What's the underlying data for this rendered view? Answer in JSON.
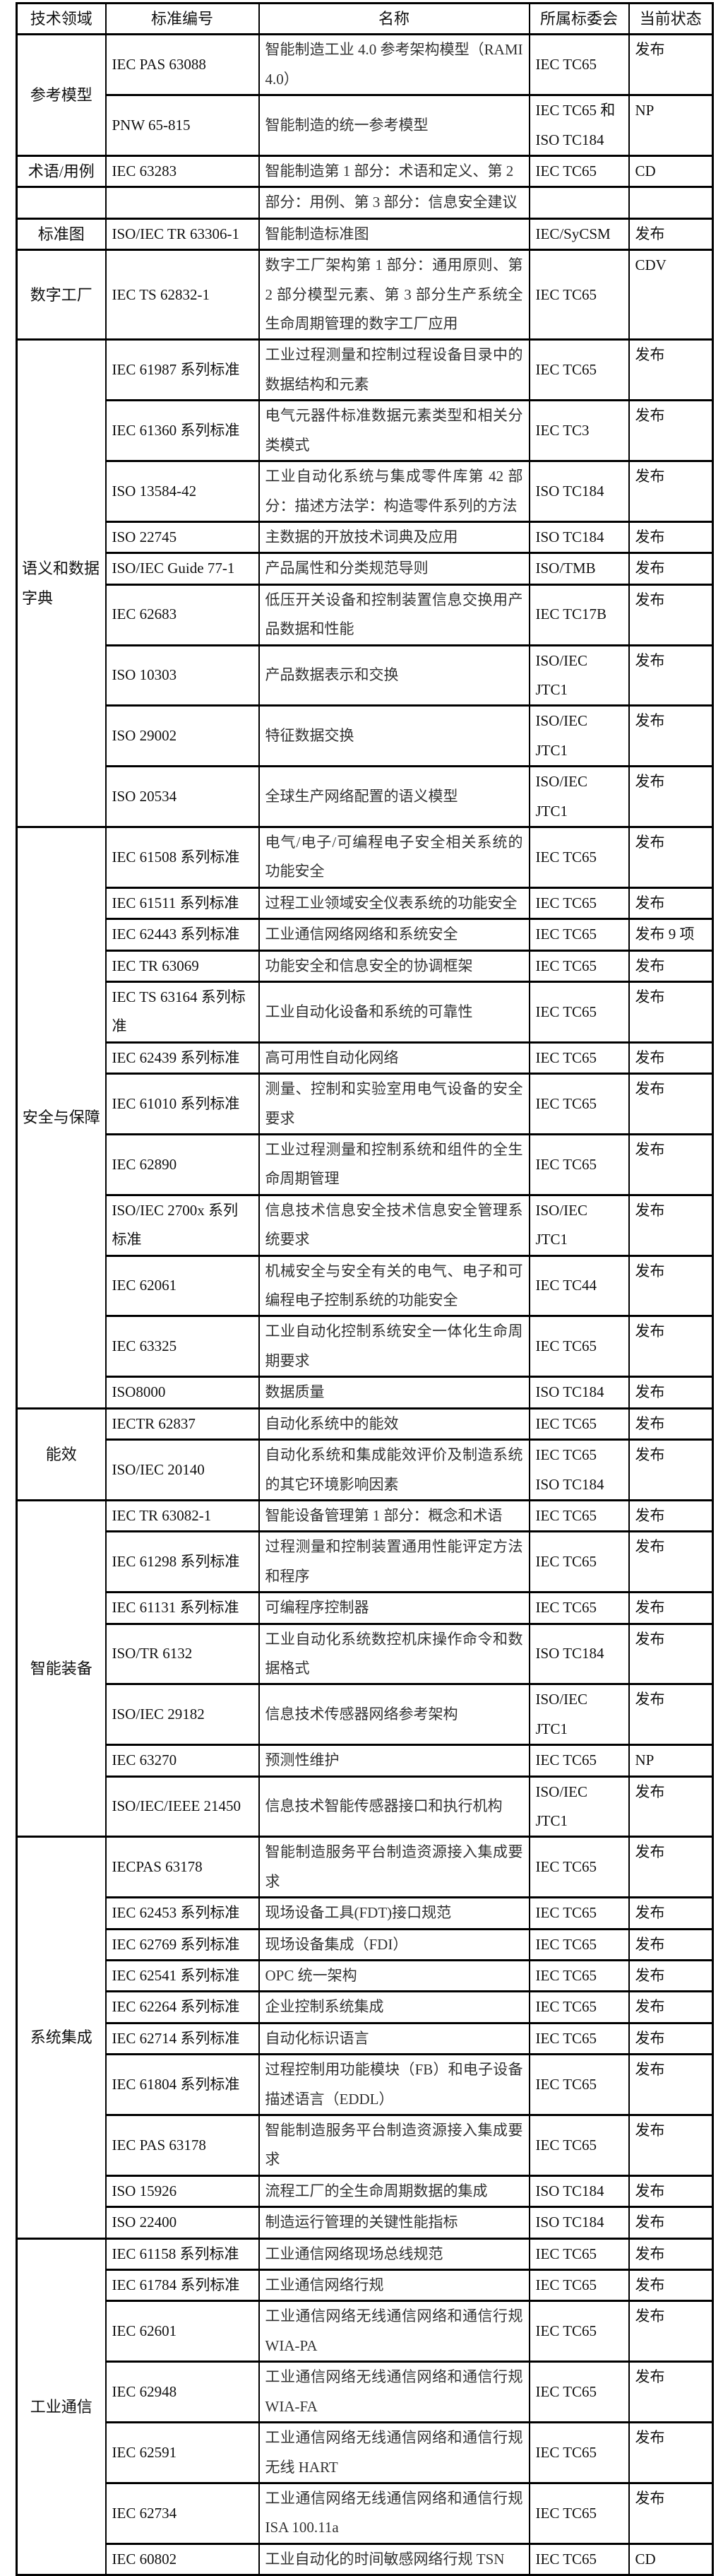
{
  "header": {
    "domain": "技术领域",
    "id": "标准编号",
    "name": "名称",
    "committee": "所属标委会",
    "status": "当前状态"
  },
  "groups": [
    {
      "category": "参考模型",
      "rows": [
        {
          "id": "IEC PAS 63088",
          "name": "智能制造工业 4.0 参考架构模型（RAMI4.0）",
          "committee": "IEC TC65",
          "status": "发布"
        },
        {
          "id": "PNW 65-815",
          "name": "智能制造的统一参考模型",
          "committee": "IEC TC65 和\nISO TC184",
          "status": "NP"
        }
      ]
    },
    {
      "category": "术语/用例",
      "rows": [
        {
          "id": "IEC 63283",
          "name": "智能制造第 1 部分：术语和定义、第 2",
          "committee": "IEC TC65",
          "status": "CD"
        }
      ]
    },
    {
      "category": "",
      "rows": [
        {
          "id": "",
          "name": "部分：用例、第 3 部分：信息安全建议",
          "committee": "",
          "status": ""
        }
      ]
    },
    {
      "category": "标准图",
      "rows": [
        {
          "id": "ISO/IEC TR 63306-1",
          "name": "智能制造标准图",
          "committee": "IEC/SyCSM",
          "status": "发布"
        }
      ]
    },
    {
      "category": "数字工厂",
      "rows": [
        {
          "id": "IEC TS 62832-1",
          "name": "数字工厂架构第 1 部分：通用原则、第 2 部分模型元素、第 3 部分生产系统全生命周期管理的数字工厂应用",
          "committee": "IEC TC65",
          "status": "CDV"
        }
      ]
    },
    {
      "category": "语义和数据字典",
      "rows": [
        {
          "id": "IEC 61987 系列标准",
          "name": "工业过程测量和控制过程设备目录中的数据结构和元素",
          "committee": "IEC TC65",
          "status": "发布"
        },
        {
          "id": "IEC 61360 系列标准",
          "name": "电气元器件标准数据元素类型和相关分类模式",
          "committee": "IEC TC3",
          "status": "发布"
        },
        {
          "id": "ISO 13584-42",
          "name": "工业自动化系统与集成零件库第 42 部分：描述方法学：构造零件系列的方法",
          "committee": "ISO TC184",
          "status": "发布"
        },
        {
          "id": "ISO 22745",
          "name": "主数据的开放技术词典及应用",
          "committee": "ISO TC184",
          "status": "发布"
        },
        {
          "id": "ISO/IEC Guide 77-1",
          "name": "产品属性和分类规范导则",
          "committee": "ISO/TMB",
          "status": "发布"
        },
        {
          "id": "IEC 62683",
          "name": "低压开关设备和控制装置信息交换用产品数据和性能",
          "committee": "IEC TC17B",
          "status": "发布"
        },
        {
          "id": "ISO 10303",
          "name": "产品数据表示和交换",
          "committee": "ISO/IEC\nJTC1",
          "status": "发布"
        },
        {
          "id": "ISO 29002",
          "name": "特征数据交换",
          "committee": "ISO/IEC\nJTC1",
          "status": "发布"
        },
        {
          "id": "ISO 20534",
          "name": "全球生产网络配置的语义模型",
          "committee": "ISO/IEC\nJTC1",
          "status": "发布"
        }
      ]
    },
    {
      "category": "安全与保障",
      "rows": [
        {
          "id": "IEC 61508 系列标准",
          "name": "电气/电子/可编程电子安全相关系统的功能安全",
          "committee": "IEC TC65",
          "status": "发布"
        },
        {
          "id": "IEC 61511 系列标准",
          "name": "过程工业领域安全仪表系统的功能安全",
          "committee": "IEC TC65",
          "status": "发布"
        },
        {
          "id": "IEC 62443 系列标准",
          "name": "工业通信网络网络和系统安全",
          "committee": "IEC TC65",
          "status": "发布 9 项"
        },
        {
          "id": "IEC TR 63069",
          "name": "功能安全和信息安全的协调框架",
          "committee": "IEC TC65",
          "status": "发布"
        },
        {
          "id": "IEC TS 63164 系列标准",
          "name": "工业自动化设备和系统的可靠性",
          "committee": "IEC TC65",
          "status": "发布"
        },
        {
          "id": "IEC 62439 系列标准",
          "name": "高可用性自动化网络",
          "committee": "IEC TC65",
          "status": "发布"
        },
        {
          "id": "IEC 61010 系列标准",
          "name": "测量、控制和实验室用电气设备的安全要求",
          "committee": "IEC TC65",
          "status": "发布"
        },
        {
          "id": "IEC 62890",
          "name": "工业过程测量和控制系统和组件的全生命周期管理",
          "committee": "IEC TC65",
          "status": "发布"
        },
        {
          "id": "ISO/IEC 2700x 系列标准",
          "name": "信息技术信息安全技术信息安全管理系统要求",
          "committee": "ISO/IEC\nJTC1",
          "status": "发布"
        },
        {
          "id": "IEC 62061",
          "name": "机械安全与安全有关的电气、电子和可编程电子控制系统的功能安全",
          "committee": "IEC TC44",
          "status": "发布"
        },
        {
          "id": "IEC 63325",
          "name": "工业自动化控制系统安全一体化生命周期要求",
          "committee": "IEC TC65",
          "status": "发布"
        },
        {
          "id": "ISO8000",
          "name": "数据质量",
          "committee": "ISO TC184",
          "status": "发布"
        }
      ]
    },
    {
      "category": "能效",
      "rows": [
        {
          "id": "IECTR 62837",
          "name": "自动化系统中的能效",
          "committee": "IEC TC65",
          "status": "发布"
        },
        {
          "id": "ISO/IEC 20140",
          "name": "自动化系统和集成能效评价及制造系统的其它环境影响因素",
          "committee": "IEC TC65\nISO TC184",
          "status": "发布"
        }
      ]
    },
    {
      "category": "智能装备",
      "rows": [
        {
          "id": "IEC TR 63082-1",
          "name": "智能设备管理第 1 部分：概念和术语",
          "committee": "IEC TC65",
          "status": "发布"
        },
        {
          "id": "IEC 61298 系列标准",
          "name": "过程测量和控制装置通用性能评定方法和程序",
          "committee": "IEC TC65",
          "status": "发布"
        },
        {
          "id": "IEC 61131 系列标准",
          "name": "可编程序控制器",
          "committee": "IEC TC65",
          "status": "发布"
        },
        {
          "id": "ISO/TR 6132",
          "name": "工业自动化系统数控机床操作命令和数据格式",
          "committee": "ISO TC184",
          "status": "发布"
        },
        {
          "id": "ISO/IEC 29182",
          "name": "信息技术传感器网络参考架构",
          "committee": "ISO/IEC\nJTC1",
          "status": "发布"
        },
        {
          "id": "IEC 63270",
          "name": "预测性维护",
          "committee": "IEC TC65",
          "status": "NP"
        },
        {
          "id": "ISO/IEC/IEEE 21450",
          "name": "信息技术智能传感器接口和执行机构",
          "committee": "ISO/IEC\nJTC1",
          "status": "发布"
        }
      ]
    },
    {
      "category": "系统集成",
      "rows": [
        {
          "id": "IECPAS 63178",
          "name": "智能制造服务平台制造资源接入集成要求",
          "committee": "IEC TC65",
          "status": "发布"
        },
        {
          "id": "IEC 62453 系列标准",
          "name": "现场设备工具(FDT)接口规范",
          "committee": "IEC TC65",
          "status": "发布"
        },
        {
          "id": "IEC 62769 系列标准",
          "name": "现场设备集成（FDI）",
          "committee": "IEC TC65",
          "status": "发布"
        },
        {
          "id": "IEC 62541 系列标准",
          "name": "OPC 统一架构",
          "committee": "IEC TC65",
          "status": "发布"
        },
        {
          "id": "IEC 62264 系列标准",
          "name": "企业控制系统集成",
          "committee": "IEC TC65",
          "status": "发布"
        },
        {
          "id": "IEC 62714 系列标准",
          "name": "自动化标识语言",
          "committee": "IEC TC65",
          "status": "发布"
        },
        {
          "id": "IEC 61804 系列标准",
          "name": "过程控制用功能模块（FB）和电子设备描述语言（EDDL）",
          "committee": "IEC TC65",
          "status": "发布"
        },
        {
          "id": "IEC PAS 63178",
          "name": "智能制造服务平台制造资源接入集成要求",
          "committee": "IEC TC65",
          "status": "发布"
        },
        {
          "id": "ISO 15926",
          "name": "流程工厂的全生命周期数据的集成",
          "committee": "ISO TC184",
          "status": "发布"
        },
        {
          "id": "ISO 22400",
          "name": "制造运行管理的关键性能指标",
          "committee": "ISO TC184",
          "status": "发布"
        }
      ]
    },
    {
      "category": "工业通信",
      "rows": [
        {
          "id": "IEC 61158 系列标准",
          "name": "工业通信网络现场总线规范",
          "committee": "IEC TC65",
          "status": "发布"
        },
        {
          "id": "IEC 61784 系列标准",
          "name": "工业通信网络行规",
          "committee": "IEC TC65",
          "status": "发布"
        },
        {
          "id": "IEC 62601",
          "name": "工业通信网络无线通信网络和通信行规 WIA-PA",
          "committee": "IEC TC65",
          "status": "发布"
        },
        {
          "id": "IEC 62948",
          "name": "工业通信网络无线通信网络和通信行规 WIA-FA",
          "committee": "IEC TC65",
          "status": "发布"
        },
        {
          "id": "IEC 62591",
          "name": "工业通信网络无线通信网络和通信行规无线 HART",
          "committee": "IEC TC65",
          "status": "发布"
        },
        {
          "id": "IEC 62734",
          "name": "工业通信网络无线通信网络和通信行规 ISA 100.11a",
          "committee": "IEC TC65",
          "status": "发布"
        },
        {
          "id": "IEC 60802",
          "name": "工业自动化的时间敏感网络行规 TSN",
          "committee": "IEC TC65",
          "status": "CD"
        }
      ]
    }
  ]
}
